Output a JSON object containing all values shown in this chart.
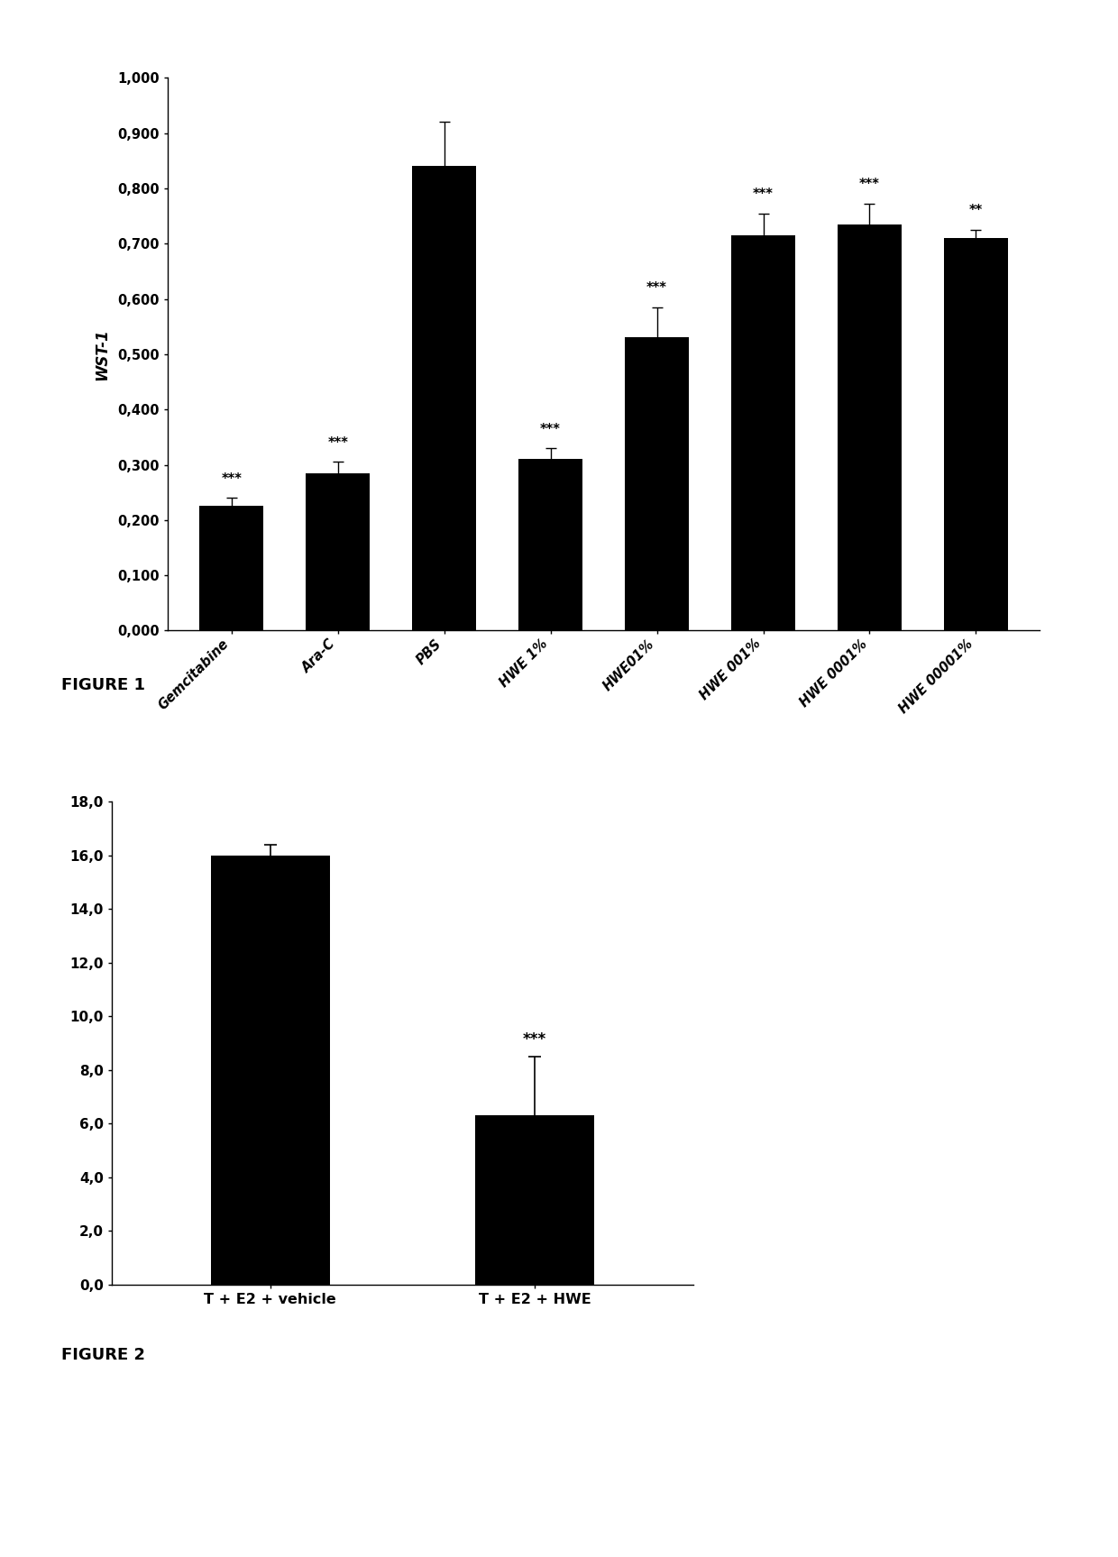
{
  "fig1": {
    "categories": [
      "Gemcitabine",
      "Ara-C",
      "PBS",
      "HWE 1%",
      "HWE01%",
      "HWE 001%",
      "HWE 0001%",
      "HWE 00001%"
    ],
    "values": [
      0.225,
      0.285,
      0.84,
      0.31,
      0.53,
      0.715,
      0.735,
      0.71
    ],
    "errors": [
      0.015,
      0.02,
      0.08,
      0.02,
      0.055,
      0.04,
      0.038,
      0.015
    ],
    "significance": [
      "***",
      "***",
      "",
      "***",
      "***",
      "***",
      "***",
      "**"
    ],
    "ylabel": "WST-1",
    "ylim": [
      0.0,
      1.0
    ],
    "yticks": [
      0.0,
      0.1,
      0.2,
      0.3,
      0.4,
      0.5,
      0.6,
      0.7,
      0.8,
      0.9,
      1.0
    ],
    "ytick_labels": [
      "0,000",
      "0,100",
      "0,200",
      "0,300",
      "0,400",
      "0,500",
      "0,600",
      "0,700",
      "0,800",
      "0,900",
      "1,000"
    ],
    "bar_color": "#000000",
    "figure_label": "FIGURE 1"
  },
  "fig2": {
    "categories": [
      "T + E2 + vehicle",
      "T + E2 + HWE"
    ],
    "values": [
      16.0,
      6.3
    ],
    "errors": [
      0.4,
      2.2
    ],
    "significance": [
      "",
      "***"
    ],
    "ylim": [
      0.0,
      18.0
    ],
    "yticks": [
      0.0,
      2.0,
      4.0,
      6.0,
      8.0,
      10.0,
      12.0,
      14.0,
      16.0,
      18.0
    ],
    "ytick_labels": [
      "0,0",
      "2,0",
      "4,0",
      "6,0",
      "8,0",
      "10,0",
      "12,0",
      "14,0",
      "16,0",
      "18,0"
    ],
    "bar_color": "#000000",
    "figure_label": "FIGURE 2"
  }
}
